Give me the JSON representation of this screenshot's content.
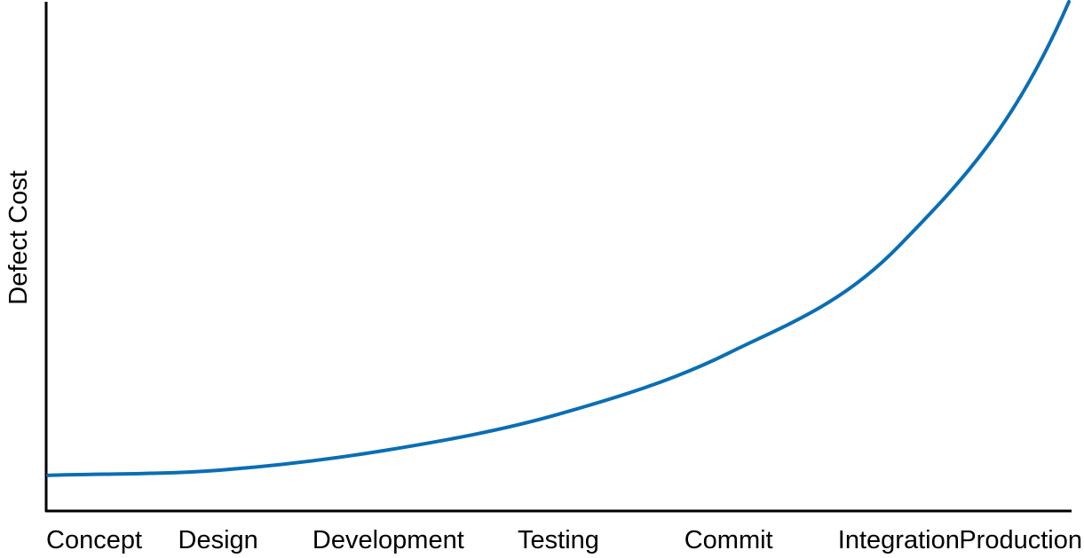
{
  "chart_data": {
    "type": "line",
    "ylabel": "Defect Cost",
    "xlabel": "",
    "categories": [
      "Concept",
      "Design",
      "Development",
      "Testing",
      "Commit",
      "Integration",
      "Production"
    ],
    "series": [
      {
        "values": [
          0.07,
          0.08,
          0.12,
          0.19,
          0.31,
          0.52,
          1.0
        ]
      }
    ],
    "ylim": [
      0,
      1
    ],
    "grid": false,
    "legend": "none",
    "colors": {
      "line": "#0a6eb4",
      "axis": "#000000",
      "text": "#000000"
    }
  }
}
